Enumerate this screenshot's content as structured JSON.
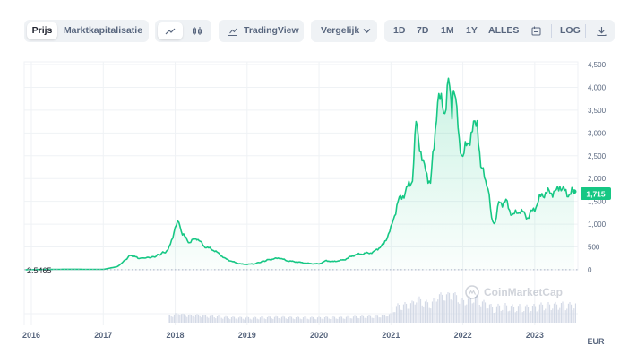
{
  "toolbar": {
    "type_tabs": [
      "Prijs",
      "Marktkapitalisatie"
    ],
    "active_type": "Prijs",
    "chart_style_icons": [
      "line-chart-icon",
      "candlestick-icon"
    ],
    "tradingview_label": "TradingView",
    "compare_label": "Vergelijk",
    "ranges": [
      "1D",
      "7D",
      "1M",
      "1Y",
      "ALLES"
    ],
    "active_range": "ALLES",
    "log_label": "LOG"
  },
  "colors": {
    "line": "#16c784",
    "accent_bg": "#eff2f5",
    "muted_text": "#58667e",
    "dark_text": "#222531"
  },
  "watermark": "CoinMarketCap",
  "chart_data": {
    "type": "area",
    "start_label": "2.5465",
    "current_label": "1,715",
    "currency": "EUR",
    "x_ticks": [
      "2016",
      "2017",
      "2018",
      "2019",
      "2020",
      "2021",
      "2022",
      "2023"
    ],
    "y_ticks": [
      "4,500",
      "4,000",
      "3,500",
      "3,000",
      "2,500",
      "2,000",
      "1,500",
      "1,000",
      "500",
      "0"
    ],
    "ylim": [
      0,
      4500
    ],
    "xlim": [
      2015.9,
      2023.6
    ],
    "grid": true,
    "series": [
      {
        "x": [
          2015.92,
          2016.5,
          2017.0,
          2017.2,
          2017.38,
          2017.5,
          2017.7,
          2017.9,
          2018.0,
          2018.05,
          2018.1,
          2018.2,
          2018.3,
          2018.4,
          2018.55,
          2018.7,
          2018.85,
          2018.95,
          2019.1,
          2019.3,
          2019.45,
          2019.55,
          2019.7,
          2019.85,
          2020.0,
          2020.1,
          2020.2,
          2020.35,
          2020.5,
          2020.6,
          2020.75,
          2020.9,
          2021.0,
          2021.05,
          2021.1,
          2021.2,
          2021.3,
          2021.35,
          2021.45,
          2021.55,
          2021.6,
          2021.65,
          2021.75,
          2021.8,
          2021.85,
          2021.87,
          2021.9,
          2021.95,
          2022.0,
          2022.05,
          2022.1,
          2022.2,
          2022.25,
          2022.3,
          2022.35,
          2022.4,
          2022.45,
          2022.5,
          2022.6,
          2022.65,
          2022.7,
          2022.8,
          2022.9,
          2023.0,
          2023.1,
          2023.2,
          2023.3,
          2023.35,
          2023.45,
          2023.5,
          2023.55
        ],
        "values": [
          2.55,
          12,
          9,
          70,
          320,
          250,
          280,
          420,
          900,
          1080,
          780,
          600,
          700,
          520,
          420,
          240,
          150,
          120,
          130,
          220,
          260,
          200,
          170,
          140,
          130,
          200,
          180,
          220,
          330,
          350,
          380,
          560,
          900,
          1200,
          1500,
          1700,
          2000,
          3200,
          2300,
          1900,
          2700,
          3800,
          3500,
          4100,
          3500,
          4000,
          3700,
          2800,
          2500,
          2700,
          2900,
          3300,
          2200,
          2100,
          1800,
          1100,
          1050,
          1450,
          1500,
          1300,
          1200,
          1300,
          1150,
          1350,
          1650,
          1700,
          1700,
          1850,
          1650,
          1700,
          1715
        ]
      }
    ]
  }
}
